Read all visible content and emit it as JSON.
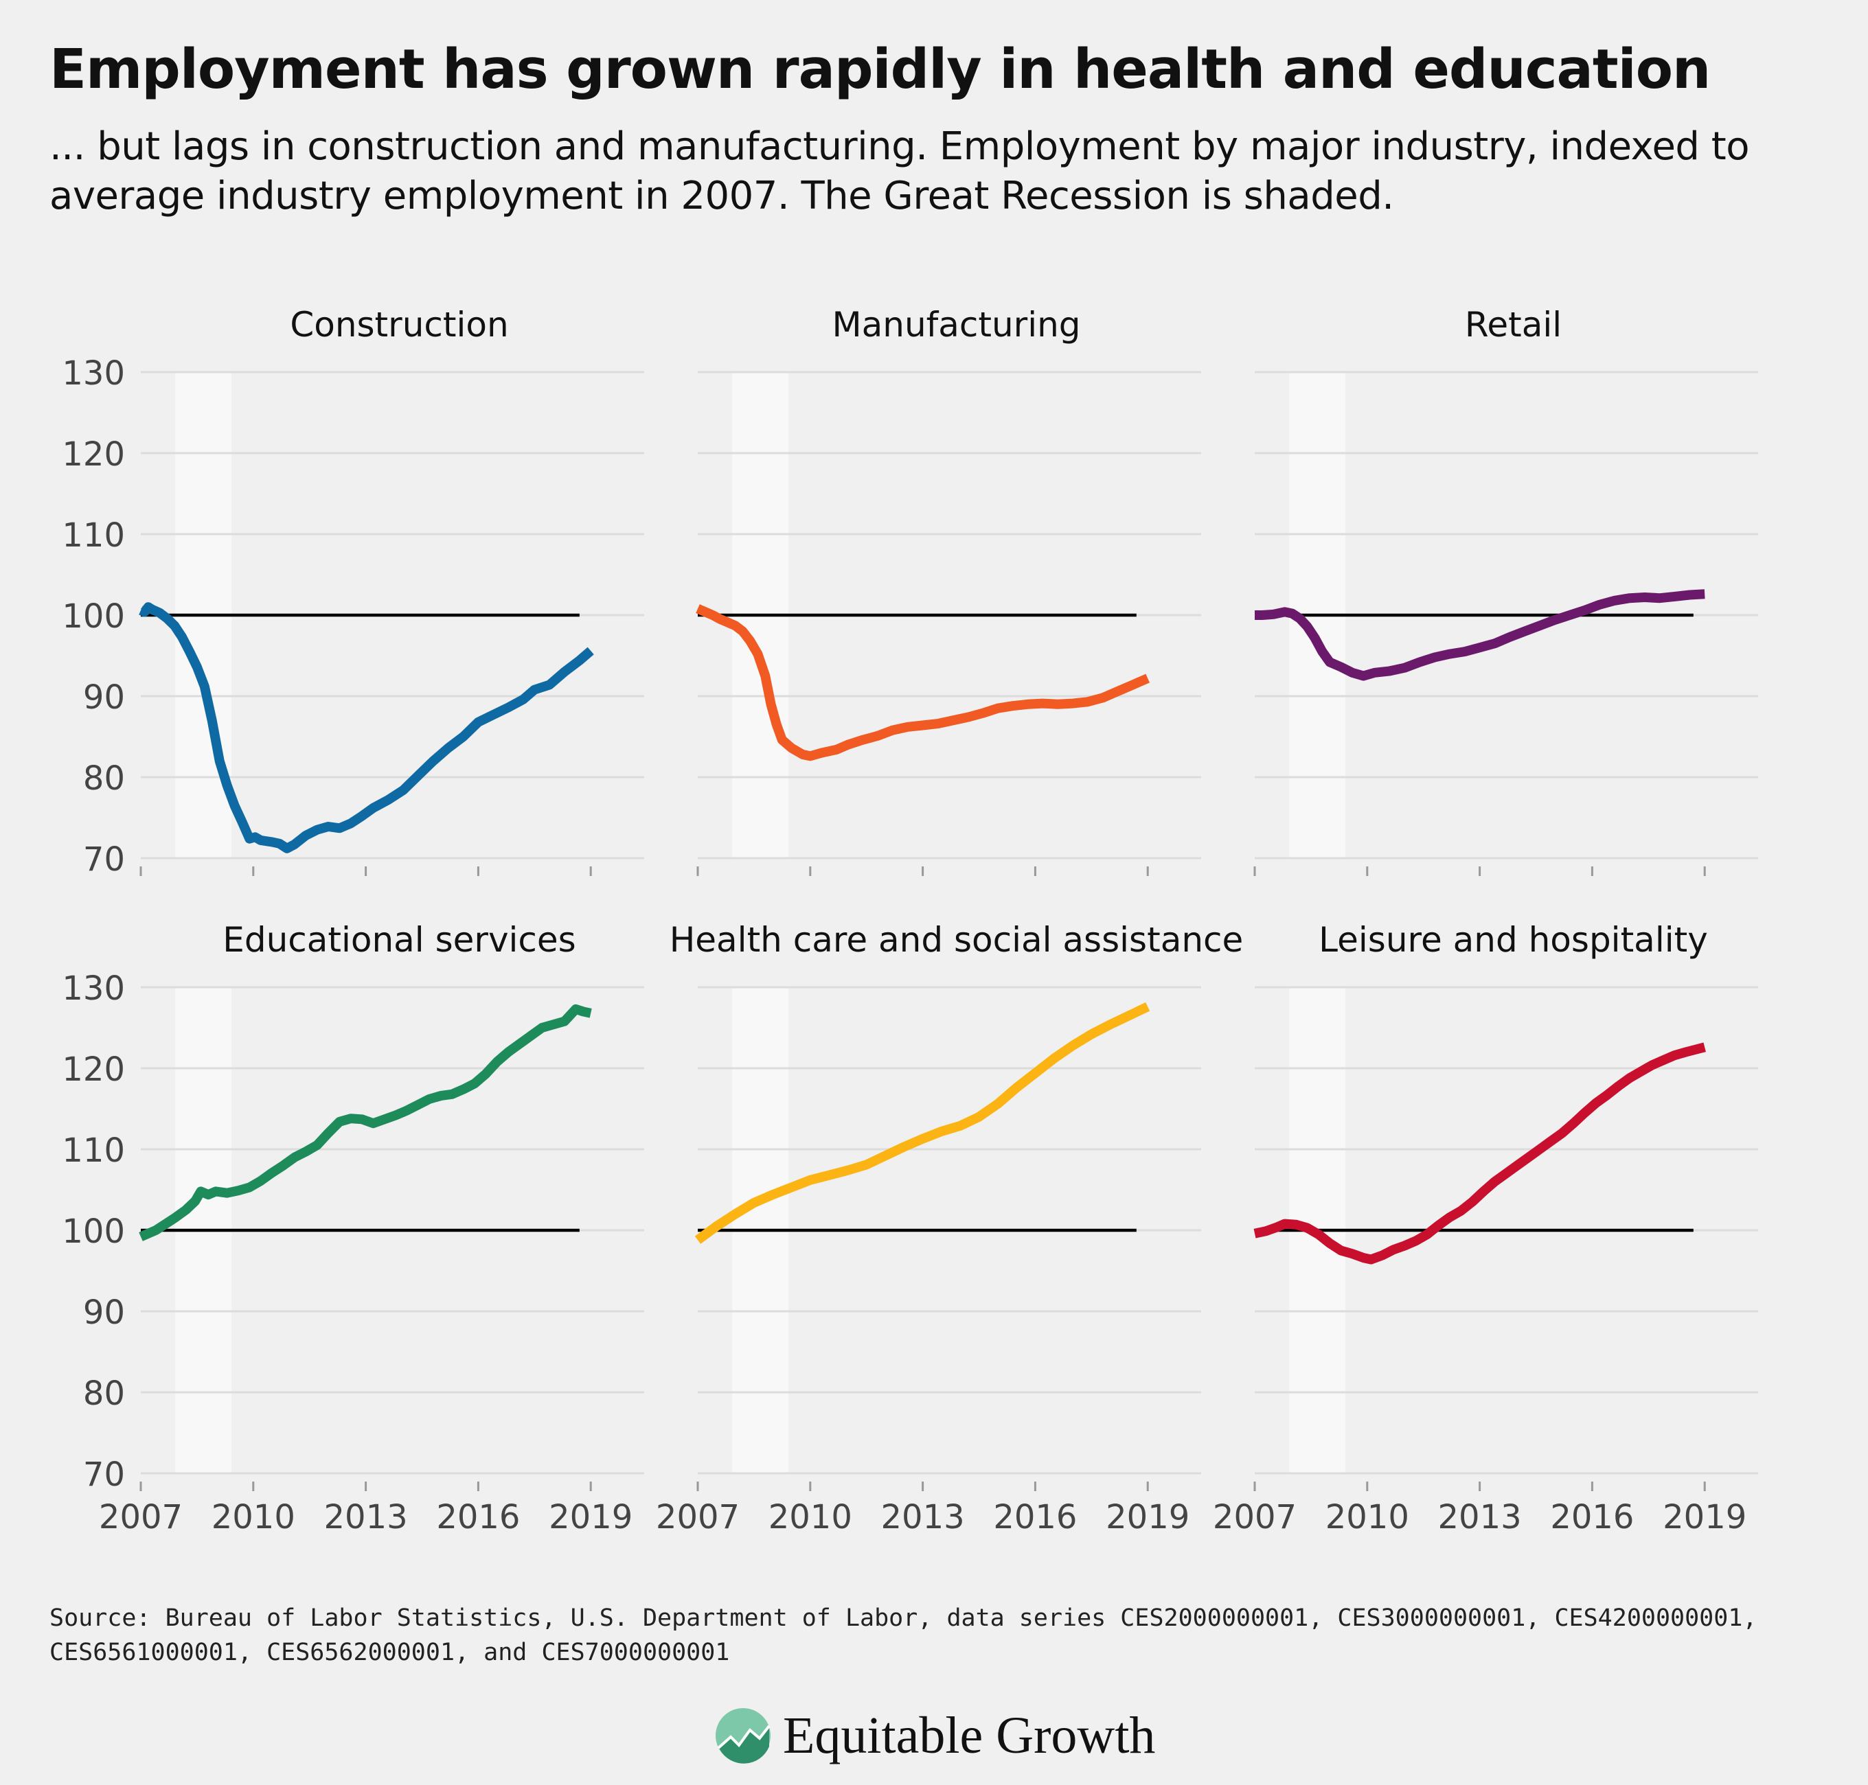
{
  "title": "Employment has grown rapidly in health and education",
  "subtitle": "... but lags in construction and manufacturing. Employment by major industry, indexed to average industry employment in 2007. The Great Recession is shaded.",
  "source": "Source: Bureau of Labor Statistics, U.S. Department of Labor, data series CES2000000001, CES3000000001, CES4200000001, CES6561000001, CES6562000001, and CES7000000001",
  "brand": {
    "name": "Equitable Growth",
    "logo_colors": [
      "#7dc8a8",
      "#2e8f6a"
    ]
  },
  "chart_data": {
    "type": "line",
    "y_ticks": [
      70,
      80,
      90,
      100,
      110,
      120,
      130
    ],
    "x_ticks": [
      2007,
      2010,
      2013,
      2016,
      2019
    ],
    "ylim": [
      70,
      130
    ],
    "xlim": [
      2006,
      2019
    ],
    "reference_line": 100,
    "recession": [
      2007.92,
      2009.42
    ],
    "grid": true,
    "panels": [
      {
        "name": "Construction",
        "color": "#0f6aa4",
        "points": [
          [
            2007,
            100.6
          ],
          [
            2007.1,
            100.4
          ],
          [
            2007.2,
            101.0
          ],
          [
            2007.3,
            100.7
          ],
          [
            2007.5,
            100.3
          ],
          [
            2007.7,
            99.6
          ],
          [
            2007.9,
            98.7
          ],
          [
            2008.1,
            97.3
          ],
          [
            2008.3,
            95.5
          ],
          [
            2008.5,
            93.6
          ],
          [
            2008.7,
            91.2
          ],
          [
            2008.9,
            87.0
          ],
          [
            2009.1,
            82.0
          ],
          [
            2009.3,
            79.0
          ],
          [
            2009.5,
            76.5
          ],
          [
            2009.7,
            74.5
          ],
          [
            2009.9,
            72.4
          ],
          [
            2010.05,
            72.6
          ],
          [
            2010.2,
            72.2
          ],
          [
            2010.5,
            72.0
          ],
          [
            2010.7,
            71.8
          ],
          [
            2010.9,
            71.2
          ],
          [
            2011.1,
            71.7
          ],
          [
            2011.4,
            72.8
          ],
          [
            2011.7,
            73.5
          ],
          [
            2012.0,
            73.9
          ],
          [
            2012.3,
            73.7
          ],
          [
            2012.6,
            74.3
          ],
          [
            2012.9,
            75.2
          ],
          [
            2013.2,
            76.2
          ],
          [
            2013.6,
            77.2
          ],
          [
            2014.0,
            78.4
          ],
          [
            2014.4,
            80.2
          ],
          [
            2014.8,
            82.0
          ],
          [
            2015.2,
            83.6
          ],
          [
            2015.6,
            85.0
          ],
          [
            2016.0,
            86.8
          ],
          [
            2016.4,
            87.7
          ],
          [
            2016.8,
            88.6
          ],
          [
            2017.2,
            89.6
          ],
          [
            2017.5,
            90.8
          ],
          [
            2017.9,
            91.4
          ],
          [
            2018.3,
            93.0
          ],
          [
            2018.7,
            94.4
          ],
          [
            2019.0,
            95.6
          ]
        ]
      },
      {
        "name": "Manufacturing",
        "color": "#f15a22",
        "points": [
          [
            2007,
            100.8
          ],
          [
            2007.2,
            100.4
          ],
          [
            2007.4,
            100.0
          ],
          [
            2007.6,
            99.5
          ],
          [
            2007.8,
            99.1
          ],
          [
            2008.0,
            98.7
          ],
          [
            2008.2,
            98.0
          ],
          [
            2008.4,
            96.8
          ],
          [
            2008.6,
            95.2
          ],
          [
            2008.8,
            92.5
          ],
          [
            2008.95,
            89.0
          ],
          [
            2009.1,
            86.5
          ],
          [
            2009.25,
            84.6
          ],
          [
            2009.5,
            83.6
          ],
          [
            2009.8,
            82.8
          ],
          [
            2010.0,
            82.6
          ],
          [
            2010.3,
            83.0
          ],
          [
            2010.7,
            83.4
          ],
          [
            2011.0,
            84.0
          ],
          [
            2011.4,
            84.6
          ],
          [
            2011.8,
            85.1
          ],
          [
            2012.2,
            85.8
          ],
          [
            2012.6,
            86.2
          ],
          [
            2013.0,
            86.4
          ],
          [
            2013.4,
            86.6
          ],
          [
            2013.8,
            87.0
          ],
          [
            2014.2,
            87.4
          ],
          [
            2014.6,
            87.9
          ],
          [
            2015.0,
            88.5
          ],
          [
            2015.4,
            88.8
          ],
          [
            2015.8,
            89.0
          ],
          [
            2016.2,
            89.1
          ],
          [
            2016.6,
            89.0
          ],
          [
            2017.0,
            89.1
          ],
          [
            2017.4,
            89.3
          ],
          [
            2017.8,
            89.8
          ],
          [
            2018.2,
            90.6
          ],
          [
            2018.6,
            91.4
          ],
          [
            2019.0,
            92.2
          ]
        ]
      },
      {
        "name": "Retail",
        "color": "#6b1a6b",
        "points": [
          [
            2007,
            100.0
          ],
          [
            2007.2,
            100.0
          ],
          [
            2007.5,
            100.1
          ],
          [
            2007.8,
            100.4
          ],
          [
            2008.0,
            100.2
          ],
          [
            2008.2,
            99.6
          ],
          [
            2008.4,
            98.6
          ],
          [
            2008.6,
            97.2
          ],
          [
            2008.8,
            95.5
          ],
          [
            2009.0,
            94.2
          ],
          [
            2009.3,
            93.6
          ],
          [
            2009.6,
            92.9
          ],
          [
            2009.9,
            92.5
          ],
          [
            2010.2,
            92.9
          ],
          [
            2010.6,
            93.1
          ],
          [
            2011.0,
            93.5
          ],
          [
            2011.4,
            94.2
          ],
          [
            2011.8,
            94.8
          ],
          [
            2012.2,
            95.2
          ],
          [
            2012.6,
            95.5
          ],
          [
            2013.0,
            96.0
          ],
          [
            2013.4,
            96.5
          ],
          [
            2013.8,
            97.3
          ],
          [
            2014.2,
            98.0
          ],
          [
            2014.6,
            98.7
          ],
          [
            2015.0,
            99.4
          ],
          [
            2015.4,
            100.0
          ],
          [
            2015.8,
            100.6
          ],
          [
            2016.2,
            101.3
          ],
          [
            2016.6,
            101.8
          ],
          [
            2017.0,
            102.1
          ],
          [
            2017.4,
            102.2
          ],
          [
            2017.8,
            102.1
          ],
          [
            2018.2,
            102.3
          ],
          [
            2018.6,
            102.5
          ],
          [
            2019.0,
            102.6
          ]
        ]
      },
      {
        "name": "Educational services",
        "color": "#1e8c5a",
        "points": [
          [
            2007,
            99.2
          ],
          [
            2007.2,
            99.6
          ],
          [
            2007.4,
            100.0
          ],
          [
            2007.6,
            100.6
          ],
          [
            2007.9,
            101.5
          ],
          [
            2008.2,
            102.5
          ],
          [
            2008.45,
            103.6
          ],
          [
            2008.6,
            104.8
          ],
          [
            2008.8,
            104.4
          ],
          [
            2009.0,
            104.8
          ],
          [
            2009.3,
            104.6
          ],
          [
            2009.6,
            104.9
          ],
          [
            2009.9,
            105.3
          ],
          [
            2010.2,
            106.1
          ],
          [
            2010.5,
            107.1
          ],
          [
            2010.8,
            108.0
          ],
          [
            2011.1,
            109.0
          ],
          [
            2011.4,
            109.7
          ],
          [
            2011.7,
            110.5
          ],
          [
            2012.0,
            112.0
          ],
          [
            2012.3,
            113.4
          ],
          [
            2012.6,
            113.8
          ],
          [
            2012.9,
            113.7
          ],
          [
            2013.2,
            113.2
          ],
          [
            2013.5,
            113.7
          ],
          [
            2013.8,
            114.2
          ],
          [
            2014.1,
            114.8
          ],
          [
            2014.4,
            115.5
          ],
          [
            2014.7,
            116.2
          ],
          [
            2015.0,
            116.6
          ],
          [
            2015.3,
            116.8
          ],
          [
            2015.6,
            117.4
          ],
          [
            2015.9,
            118.1
          ],
          [
            2016.2,
            119.3
          ],
          [
            2016.5,
            120.8
          ],
          [
            2016.8,
            122.0
          ],
          [
            2017.1,
            123.0
          ],
          [
            2017.4,
            124.0
          ],
          [
            2017.7,
            125.0
          ],
          [
            2018.0,
            125.4
          ],
          [
            2018.3,
            125.8
          ],
          [
            2018.6,
            127.3
          ],
          [
            2018.8,
            127.0
          ],
          [
            2019.0,
            126.8
          ]
        ]
      },
      {
        "name": "Health care and social assistance",
        "color": "#fbb413",
        "points": [
          [
            2007,
            98.8
          ],
          [
            2007.5,
            100.5
          ],
          [
            2008.0,
            102.0
          ],
          [
            2008.5,
            103.4
          ],
          [
            2009.0,
            104.4
          ],
          [
            2009.5,
            105.3
          ],
          [
            2010.0,
            106.2
          ],
          [
            2010.5,
            106.8
          ],
          [
            2011.0,
            107.4
          ],
          [
            2011.5,
            108.1
          ],
          [
            2012.0,
            109.2
          ],
          [
            2012.5,
            110.3
          ],
          [
            2013.0,
            111.3
          ],
          [
            2013.5,
            112.2
          ],
          [
            2014.0,
            112.9
          ],
          [
            2014.5,
            114.0
          ],
          [
            2015.0,
            115.6
          ],
          [
            2015.5,
            117.6
          ],
          [
            2016.0,
            119.4
          ],
          [
            2016.5,
            121.2
          ],
          [
            2017.0,
            122.8
          ],
          [
            2017.5,
            124.2
          ],
          [
            2018.0,
            125.4
          ],
          [
            2018.5,
            126.5
          ],
          [
            2019.0,
            127.6
          ]
        ]
      },
      {
        "name": "Leisure and hospitality",
        "color": "#c8102e",
        "points": [
          [
            2007,
            99.6
          ],
          [
            2007.3,
            99.9
          ],
          [
            2007.6,
            100.4
          ],
          [
            2007.8,
            100.8
          ],
          [
            2008.1,
            100.7
          ],
          [
            2008.4,
            100.3
          ],
          [
            2008.7,
            99.5
          ],
          [
            2009.0,
            98.4
          ],
          [
            2009.3,
            97.5
          ],
          [
            2009.6,
            97.1
          ],
          [
            2009.9,
            96.6
          ],
          [
            2010.1,
            96.4
          ],
          [
            2010.4,
            96.9
          ],
          [
            2010.7,
            97.6
          ],
          [
            2011.0,
            98.1
          ],
          [
            2011.3,
            98.7
          ],
          [
            2011.6,
            99.5
          ],
          [
            2011.9,
            100.6
          ],
          [
            2012.2,
            101.6
          ],
          [
            2012.5,
            102.4
          ],
          [
            2012.8,
            103.5
          ],
          [
            2013.1,
            104.8
          ],
          [
            2013.4,
            106.0
          ],
          [
            2013.7,
            107.0
          ],
          [
            2014.0,
            108.0
          ],
          [
            2014.3,
            109.0
          ],
          [
            2014.6,
            110.0
          ],
          [
            2014.9,
            111.0
          ],
          [
            2015.2,
            112.0
          ],
          [
            2015.5,
            113.2
          ],
          [
            2015.8,
            114.5
          ],
          [
            2016.1,
            115.7
          ],
          [
            2016.4,
            116.7
          ],
          [
            2016.7,
            117.8
          ],
          [
            2017.0,
            118.8
          ],
          [
            2017.3,
            119.6
          ],
          [
            2017.6,
            120.4
          ],
          [
            2017.9,
            121.0
          ],
          [
            2018.2,
            121.6
          ],
          [
            2018.5,
            122.0
          ],
          [
            2019.0,
            122.6
          ]
        ]
      }
    ]
  }
}
